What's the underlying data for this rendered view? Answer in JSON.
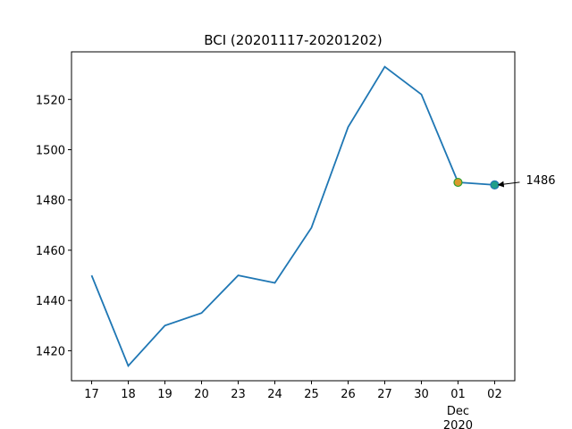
{
  "chart_data": {
    "type": "line",
    "title": "BCI (20201117-20201202)",
    "categories": [
      "17",
      "18",
      "19",
      "20",
      "23",
      "24",
      "25",
      "26",
      "27",
      "30",
      "01",
      "02"
    ],
    "category_sublabels": [
      "Dec",
      "2020"
    ],
    "series": [
      {
        "name": "BCI",
        "color": "#1f77b4",
        "values": [
          1450,
          1414,
          1430,
          1435,
          1450,
          1447,
          1469,
          1509,
          1533,
          1522,
          1487,
          1486
        ]
      }
    ],
    "highlights": [
      {
        "index": 10,
        "fill": "#d99a2b",
        "edge": "#2ca02c"
      },
      {
        "index": 11,
        "fill": "#1f9e89",
        "edge": "#1f77b4"
      }
    ],
    "annotation": {
      "index": 11,
      "text": "1486"
    },
    "ylim": [
      1408.05,
      1538.95
    ],
    "yticks": [
      1420,
      1440,
      1460,
      1480,
      1500,
      1520
    ],
    "grid": false
  }
}
